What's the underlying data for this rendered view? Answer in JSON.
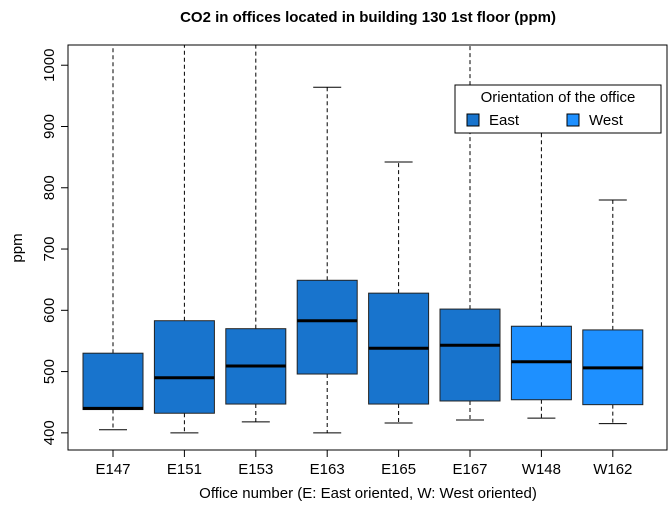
{
  "chart_data": {
    "type": "box",
    "title": "CO2 in offices located in building 130 1st floor (ppm)",
    "x_label": "Office number (E: East oriented, W: West oriented)",
    "y_label": "ppm",
    "legend_title": "Orientation of the office",
    "legend_position": "top-right",
    "series": [
      {
        "name": "East",
        "color": "#1874cd"
      },
      {
        "name": "West",
        "color": "#1e90ff"
      }
    ],
    "categories": [
      "E147",
      "E151",
      "E153",
      "E163",
      "E165",
      "E167",
      "W148",
      "W162"
    ],
    "groups": [
      "East",
      "East",
      "East",
      "East",
      "East",
      "East",
      "West",
      "West"
    ],
    "whislo": [
      405,
      400,
      418,
      400,
      416,
      421,
      424,
      415
    ],
    "q1": [
      438,
      432,
      447,
      496,
      447,
      452,
      454,
      446
    ],
    "median": [
      440,
      490,
      509,
      583,
      538,
      543,
      516,
      506
    ],
    "q3": [
      530,
      583,
      570,
      649,
      628,
      602,
      574,
      568
    ],
    "whishi": [
      1100,
      1100,
      1100,
      964,
      842,
      1100,
      906,
      780
    ],
    "ylim": [
      372,
      1033
    ],
    "yticks": [
      400,
      500,
      600,
      700,
      800,
      900,
      1000
    ]
  }
}
